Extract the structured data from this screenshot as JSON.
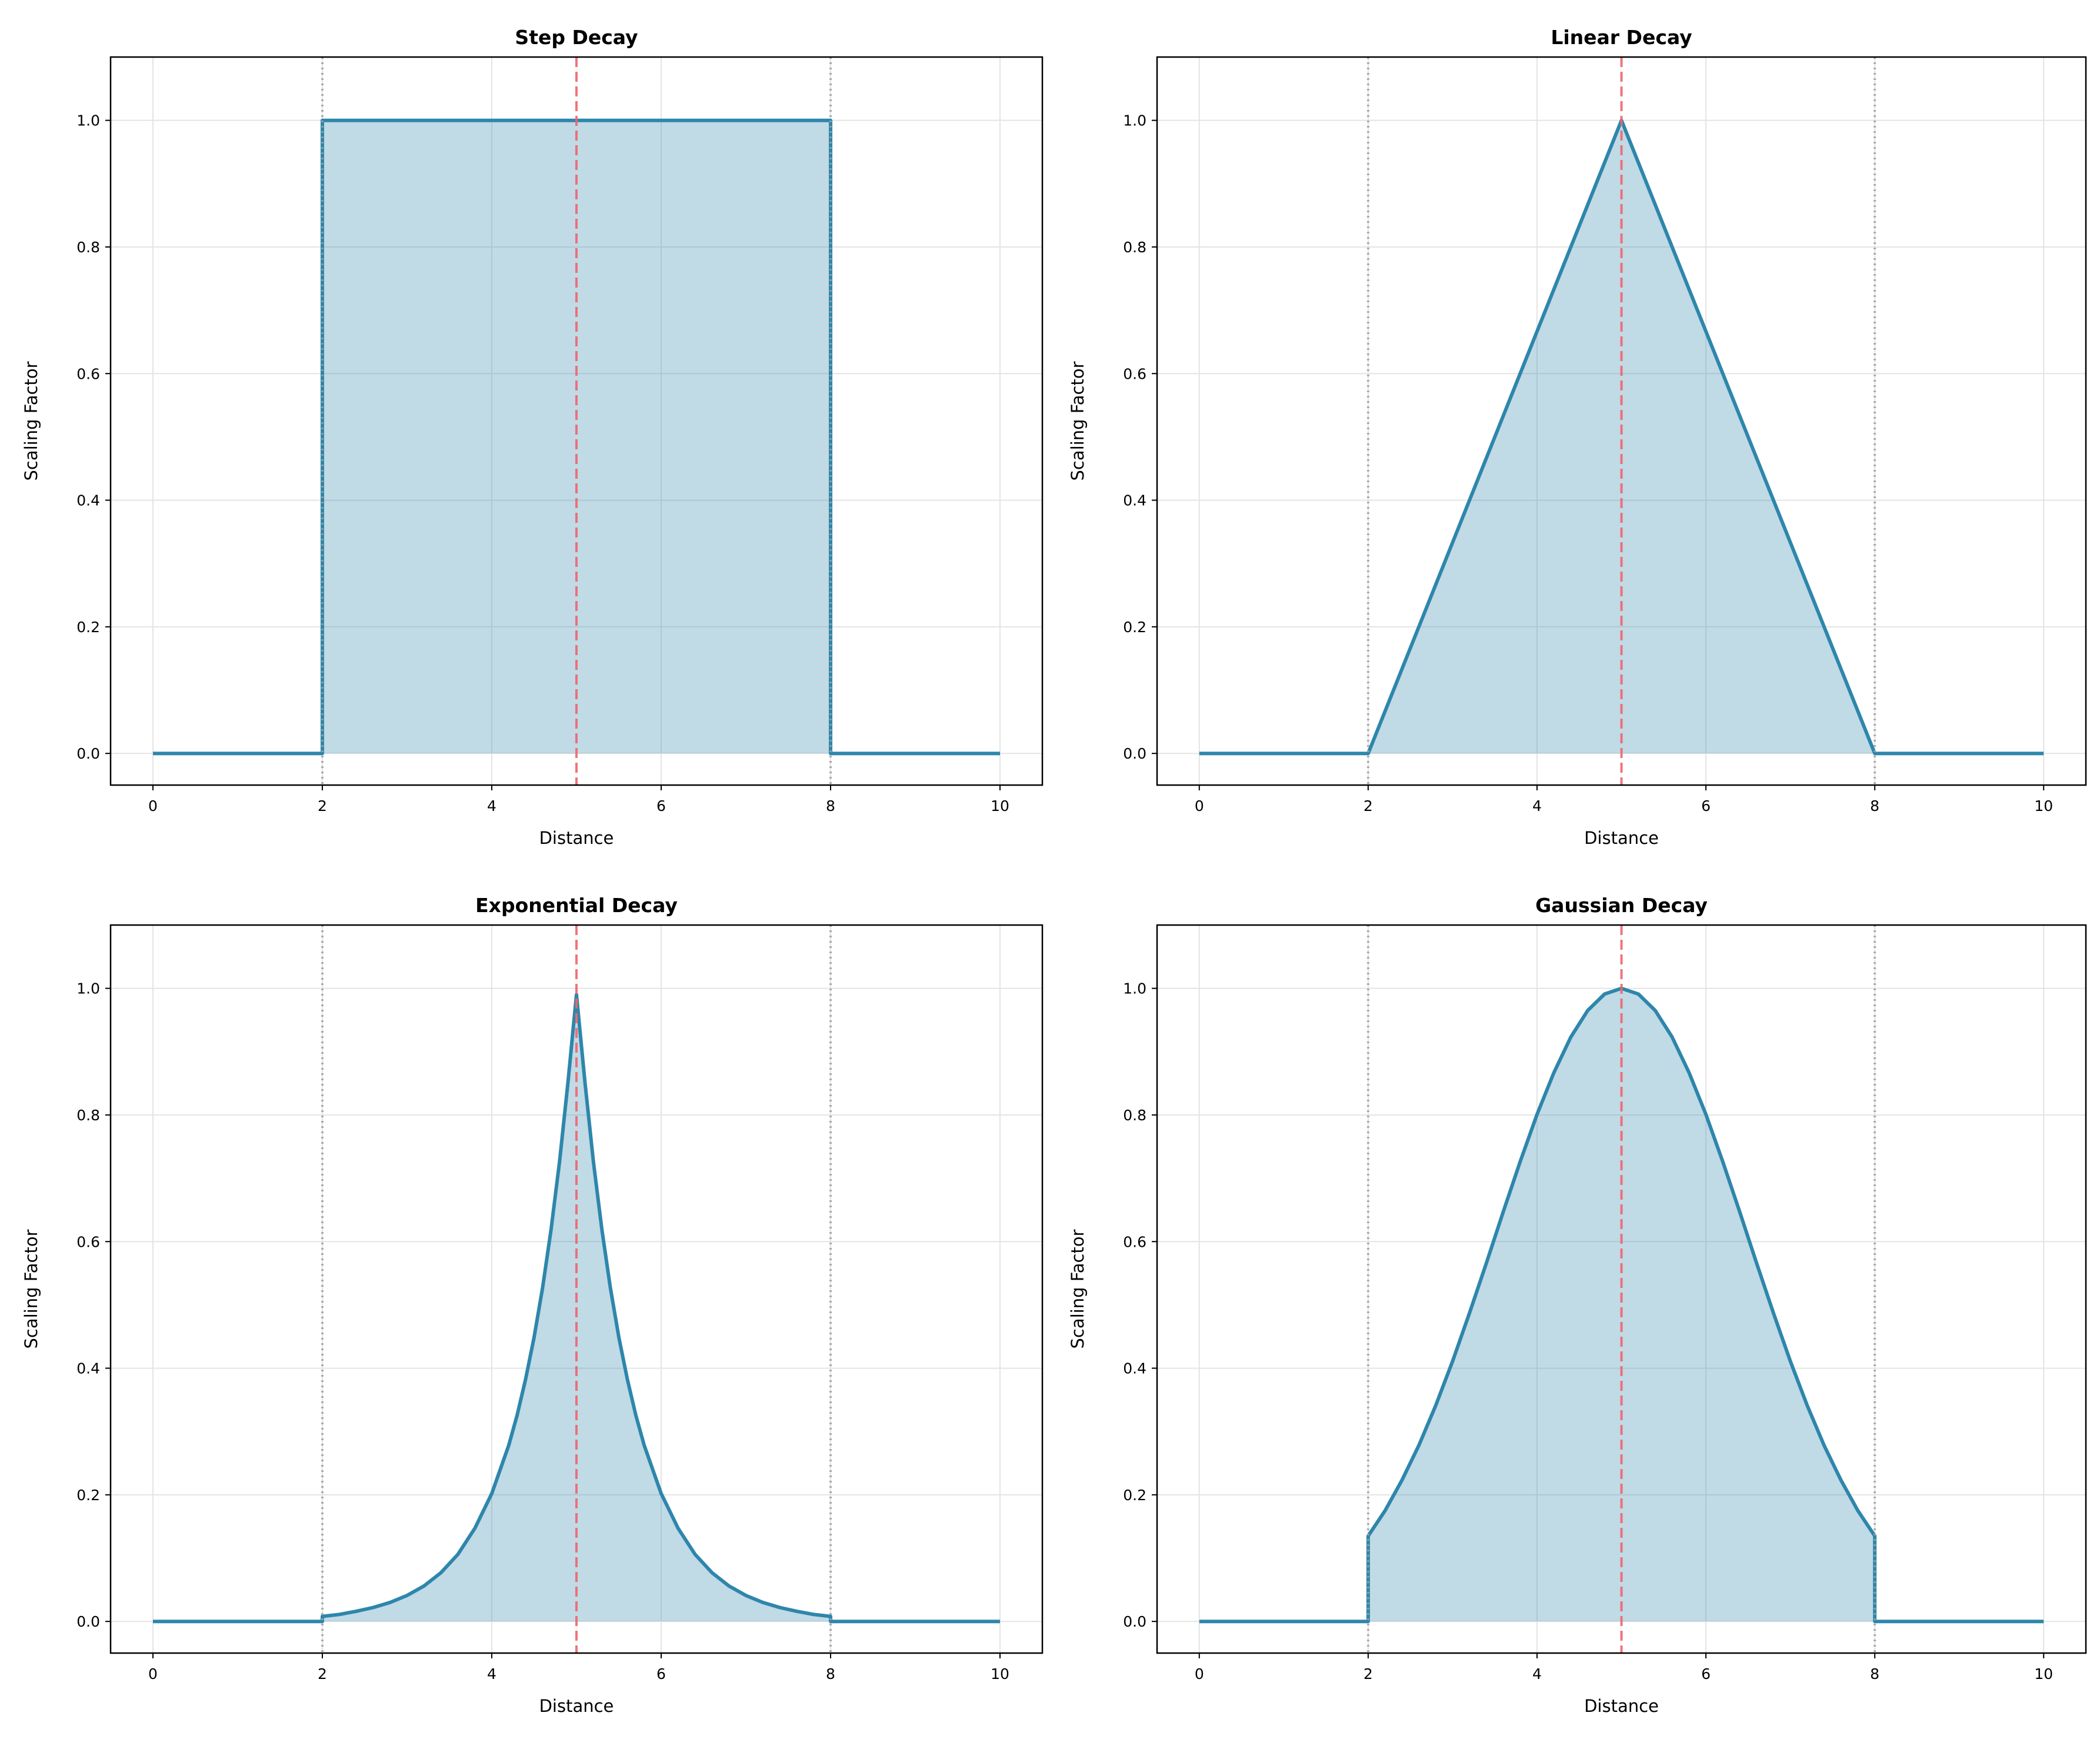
{
  "colors": {
    "line": "#2E86AB",
    "fill": "#2E86AB",
    "center_line": "#F0646B",
    "bound_lines": "#A0A0A0",
    "grid": "#E4E4E4"
  },
  "chart_data": [
    {
      "type": "area",
      "title": "Step Decay",
      "xlabel": "Distance",
      "ylabel": "Scaling Factor",
      "xlim": [
        -0.5,
        10.5
      ],
      "ylim": [
        -0.05,
        1.1
      ],
      "xticks": [
        "0",
        "2",
        "4",
        "6",
        "8",
        "10"
      ],
      "yticks": [
        "0.0",
        "0.2",
        "0.4",
        "0.6",
        "0.8",
        "1.0"
      ],
      "grid": true,
      "vlines": {
        "center": 5,
        "bounds": [
          2,
          8
        ]
      },
      "x": [
        0,
        2,
        2,
        8,
        8,
        10
      ],
      "y": [
        0,
        0,
        1,
        1,
        0,
        0
      ]
    },
    {
      "type": "area",
      "title": "Linear Decay",
      "xlabel": "Distance",
      "ylabel": "Scaling Factor",
      "xlim": [
        -0.5,
        10.5
      ],
      "ylim": [
        -0.05,
        1.1
      ],
      "xticks": [
        "0",
        "2",
        "4",
        "6",
        "8",
        "10"
      ],
      "yticks": [
        "0.0",
        "0.2",
        "0.4",
        "0.6",
        "0.8",
        "1.0"
      ],
      "grid": true,
      "vlines": {
        "center": 5,
        "bounds": [
          2,
          8
        ]
      },
      "x": [
        0,
        2,
        5,
        8,
        10
      ],
      "y": [
        0,
        0,
        1,
        0,
        0
      ]
    },
    {
      "type": "area",
      "title": "Exponential Decay",
      "xlabel": "Distance",
      "ylabel": "Scaling Factor",
      "xlim": [
        -0.5,
        10.5
      ],
      "ylim": [
        -0.05,
        1.1
      ],
      "xticks": [
        "0",
        "2",
        "4",
        "6",
        "8",
        "10"
      ],
      "yticks": [
        "0.0",
        "0.2",
        "0.4",
        "0.6",
        "0.8",
        "1.0"
      ],
      "grid": true,
      "vlines": {
        "center": 5,
        "bounds": [
          2,
          8
        ]
      },
      "x": [
        0,
        2,
        2,
        2.2,
        2.4,
        2.6,
        2.8,
        3.0,
        3.2,
        3.4,
        3.6,
        3.8,
        4.0,
        4.2,
        4.3,
        4.4,
        4.5,
        4.6,
        4.7,
        4.8,
        4.9,
        5.0,
        5.1,
        5.2,
        5.3,
        5.4,
        5.5,
        5.6,
        5.7,
        5.8,
        6.0,
        6.2,
        6.4,
        6.6,
        6.8,
        7.0,
        7.2,
        7.4,
        7.6,
        7.8,
        8.0,
        8.0,
        10
      ],
      "y": [
        0,
        0,
        0.008,
        0.011,
        0.016,
        0.022,
        0.03,
        0.041,
        0.056,
        0.077,
        0.106,
        0.147,
        0.202,
        0.278,
        0.326,
        0.383,
        0.449,
        0.527,
        0.619,
        0.726,
        0.852,
        0.99,
        0.852,
        0.726,
        0.619,
        0.527,
        0.449,
        0.383,
        0.326,
        0.278,
        0.202,
        0.147,
        0.106,
        0.077,
        0.056,
        0.041,
        0.03,
        0.022,
        0.016,
        0.011,
        0.008,
        0,
        0
      ]
    },
    {
      "type": "area",
      "title": "Gaussian Decay",
      "xlabel": "Distance",
      "ylabel": "Scaling Factor",
      "xlim": [
        -0.5,
        10.5
      ],
      "ylim": [
        -0.05,
        1.1
      ],
      "xticks": [
        "0",
        "2",
        "4",
        "6",
        "8",
        "10"
      ],
      "yticks": [
        "0.0",
        "0.2",
        "0.4",
        "0.6",
        "0.8",
        "1.0"
      ],
      "grid": true,
      "vlines": {
        "center": 5,
        "bounds": [
          2,
          8
        ]
      },
      "x": [
        0,
        2,
        2.0,
        2.2,
        2.4,
        2.6,
        2.8,
        3.0,
        3.2,
        3.4,
        3.6,
        3.8,
        4.0,
        4.2,
        4.4,
        4.6,
        4.8,
        5.0,
        5.2,
        5.4,
        5.6,
        5.8,
        6.0,
        6.2,
        6.4,
        6.6,
        6.8,
        7.0,
        7.2,
        7.4,
        7.6,
        7.8,
        8.0,
        8,
        10
      ],
      "y": [
        0,
        0,
        0.135,
        0.175,
        0.223,
        0.278,
        0.341,
        0.411,
        0.487,
        0.566,
        0.647,
        0.726,
        0.801,
        0.867,
        0.923,
        0.965,
        0.991,
        1.0,
        0.991,
        0.965,
        0.923,
        0.867,
        0.801,
        0.726,
        0.647,
        0.566,
        0.487,
        0.411,
        0.341,
        0.278,
        0.223,
        0.175,
        0.135,
        0,
        0
      ]
    }
  ]
}
